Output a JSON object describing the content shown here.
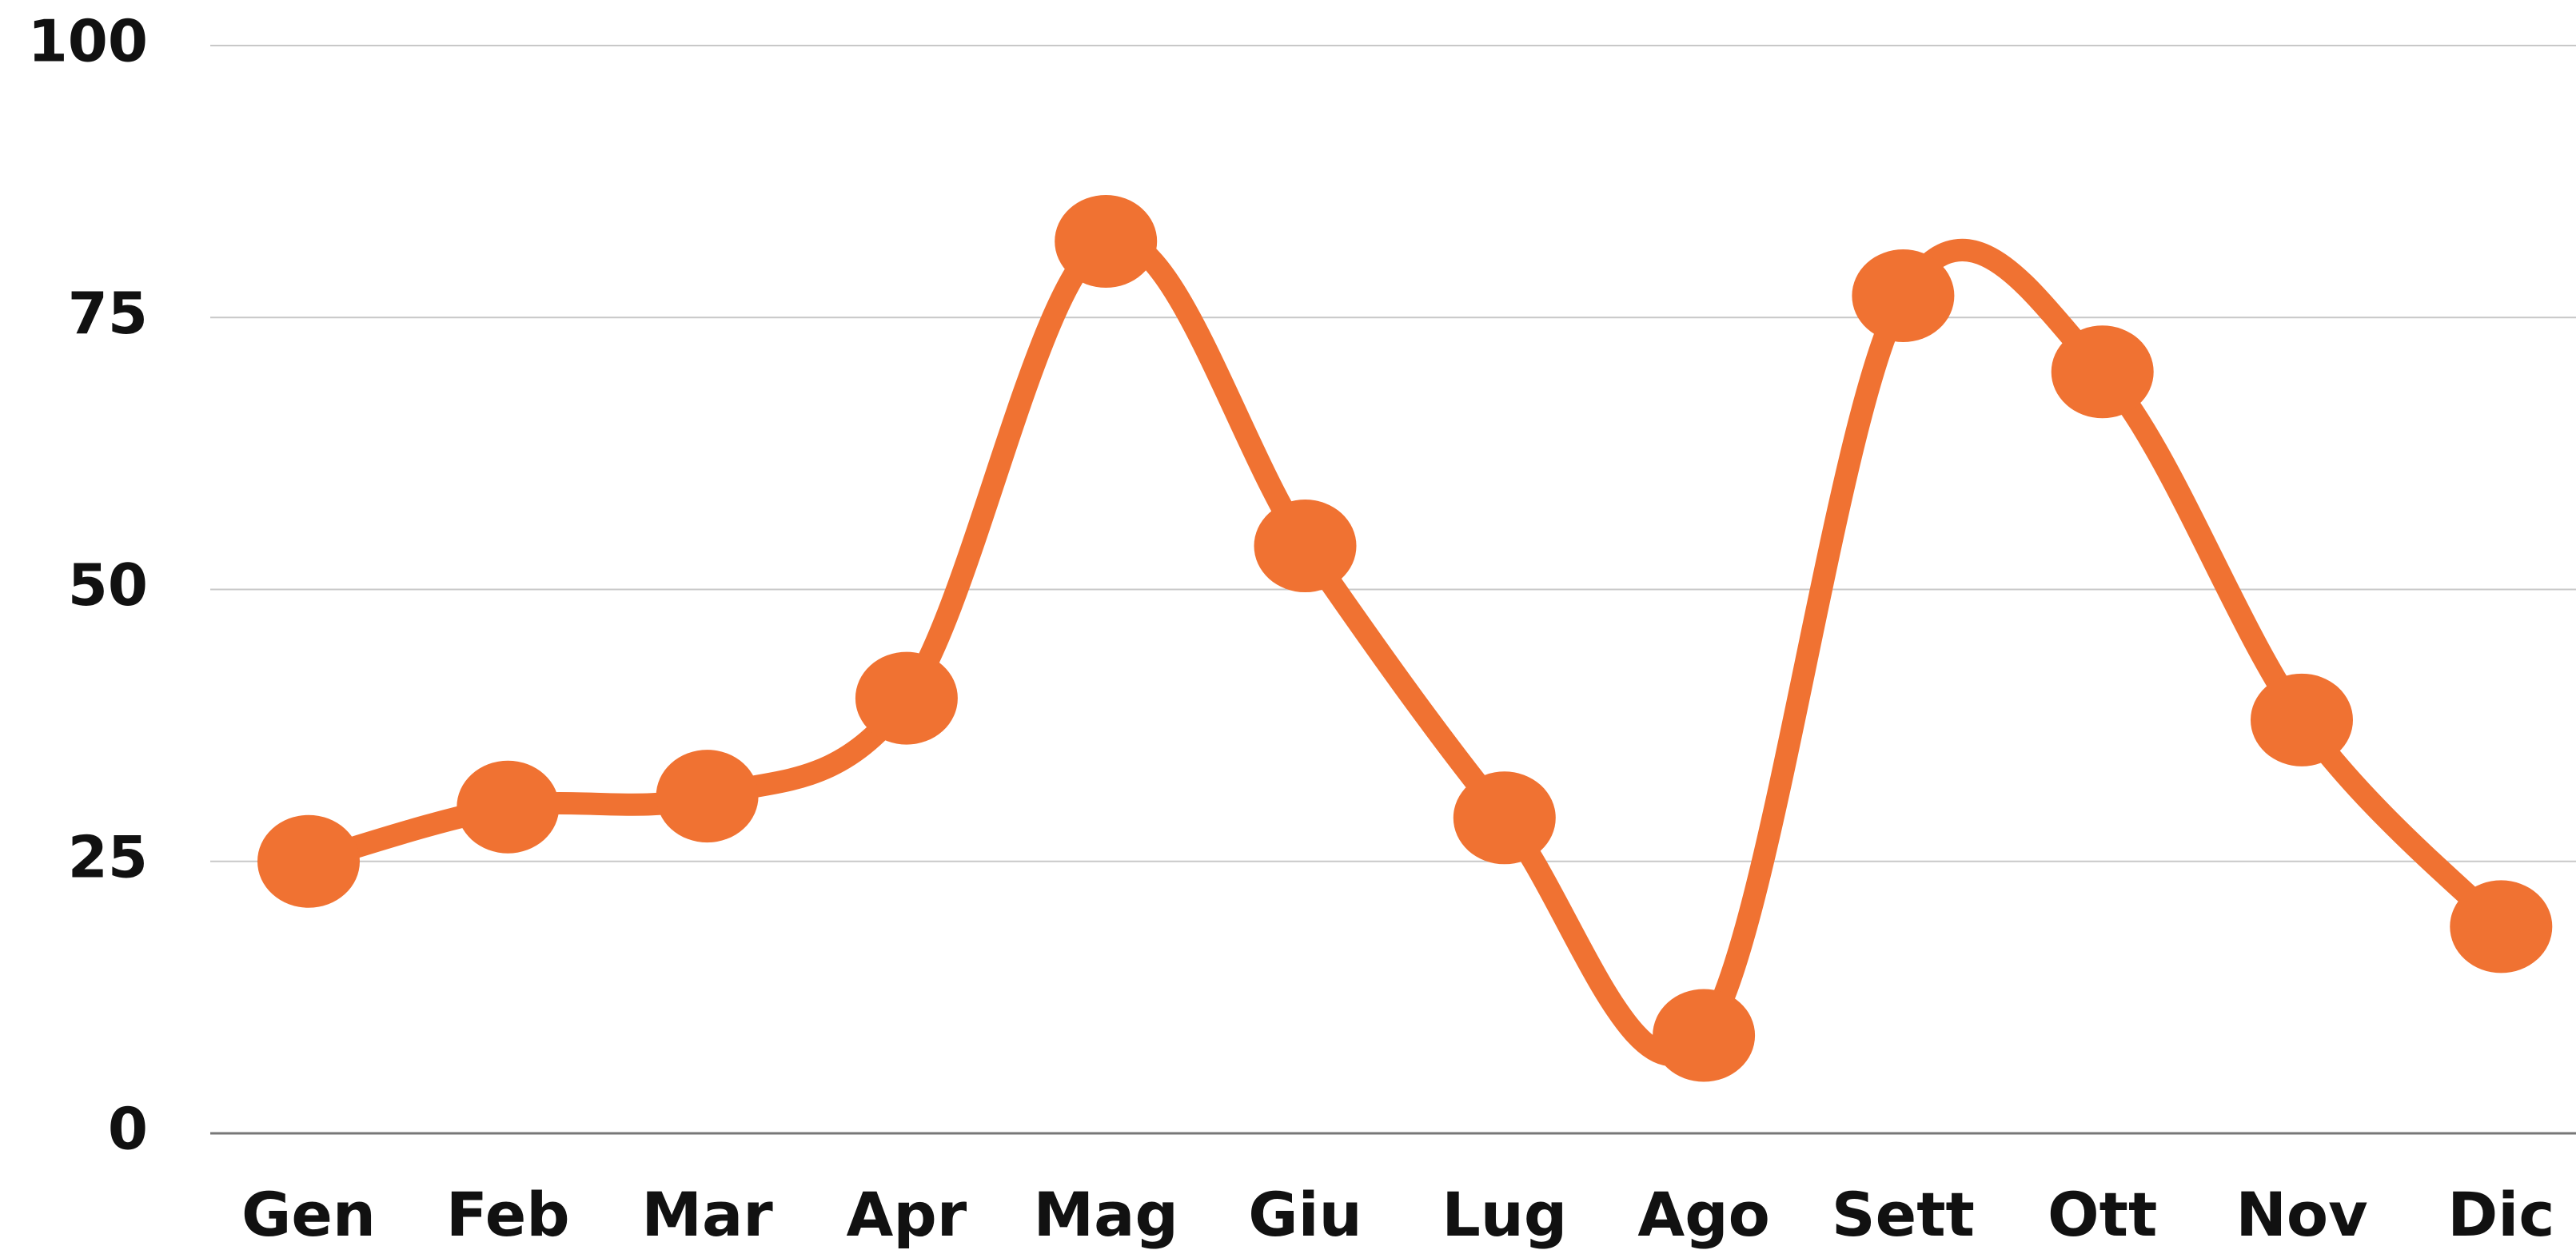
{
  "chart_data": {
    "type": "line",
    "categories": [
      "Gen",
      "Feb",
      "Mar",
      "Apr",
      "Mag",
      "Giu",
      "Lug",
      "Ago",
      "Sett",
      "Ott",
      "Nov",
      "Dic"
    ],
    "series": [
      {
        "color": "#f07232",
        "values": [
          25,
          30,
          31,
          40,
          82,
          54,
          29,
          9,
          77,
          70,
          38,
          19
        ]
      }
    ],
    "ylim": [
      0,
      100
    ],
    "yticks": [
      0,
      25,
      50,
      75,
      100
    ],
    "grid": true
  }
}
